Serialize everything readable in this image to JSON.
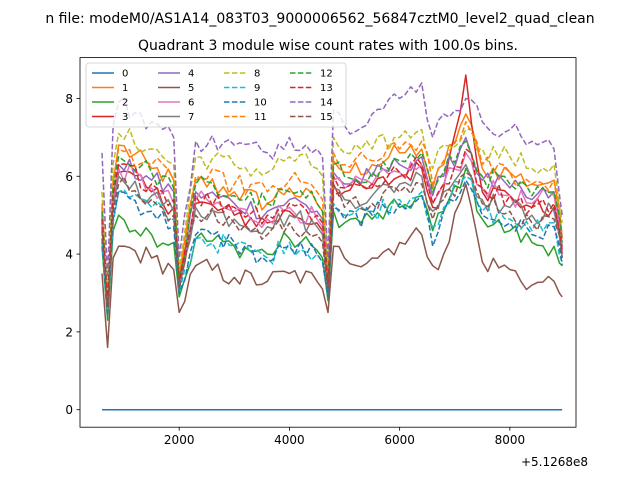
{
  "figure": {
    "suptitle": "n file: modeM0/AS1A14_083T03_9000006562_56847cztM0_level2_quad_clean",
    "title": "Quadrant 3 module wise count rates with 100.0s bins.",
    "offset_label": "+5.1268e8"
  },
  "chart_data": {
    "type": "line",
    "title": "Quadrant 3 module wise count rates with 100.0s bins.",
    "xlabel": "",
    "ylabel": "",
    "x_offset": 512680000,
    "xlim": [
      200,
      9200
    ],
    "ylim": [
      -0.45,
      9.05
    ],
    "xticks": [
      2000,
      4000,
      6000,
      8000
    ],
    "xtick_labels": [
      "2000",
      "4000",
      "6000",
      "8000"
    ],
    "yticks": [
      0,
      2,
      4,
      6,
      8
    ],
    "ytick_labels": [
      "0",
      "2",
      "4",
      "6",
      "8"
    ],
    "grid": false,
    "legend": {
      "placement": "top-left",
      "columns": 4
    },
    "x_knots": [
      600,
      700,
      800,
      900,
      1500,
      1900,
      2000,
      2300,
      3000,
      3600,
      4000,
      4500,
      4600,
      4700,
      4800,
      5000,
      5500,
      6000,
      6400,
      6600,
      6800,
      7200,
      7500,
      8000,
      8400,
      8800,
      8950
    ],
    "series": [
      {
        "name": "0",
        "color": "#1f77b4",
        "dash": false,
        "y_knots": [
          0,
          0,
          0,
          0,
          0,
          0,
          0,
          0,
          0,
          0,
          0,
          0,
          0,
          0,
          0,
          0,
          0,
          0,
          0,
          0,
          0,
          0,
          0,
          0,
          0,
          0,
          0
        ]
      },
      {
        "name": "1",
        "color": "#ff7f0e",
        "dash": false,
        "y_knots": [
          5.2,
          2.8,
          5.8,
          6.8,
          6.2,
          5.9,
          3.4,
          5.9,
          5.6,
          5.3,
          5.7,
          5.3,
          5.1,
          3.3,
          6.4,
          6.1,
          6.3,
          6.6,
          6.7,
          5.7,
          6.3,
          7.6,
          6.2,
          6.1,
          5.8,
          5.9,
          4.4
        ]
      },
      {
        "name": "2",
        "color": "#2ca02c",
        "dash": false,
        "y_knots": [
          4.2,
          2.3,
          4.6,
          5.0,
          4.5,
          4.3,
          2.9,
          4.4,
          4.2,
          4.0,
          4.4,
          4.1,
          3.9,
          2.8,
          5.1,
          4.8,
          4.9,
          5.2,
          5.5,
          4.6,
          5.1,
          6.2,
          4.9,
          4.6,
          4.3,
          4.2,
          3.7
        ]
      },
      {
        "name": "3",
        "color": "#d62728",
        "dash": false,
        "y_knots": [
          4.8,
          2.6,
          5.3,
          6.1,
          5.6,
          5.2,
          3.2,
          5.3,
          5.0,
          4.8,
          5.1,
          4.8,
          4.6,
          3.1,
          5.8,
          5.6,
          5.7,
          6.0,
          6.2,
          5.2,
          5.7,
          8.6,
          5.6,
          5.5,
          5.2,
          5.2,
          4.0
        ]
      },
      {
        "name": "4",
        "color": "#9467bd",
        "dash": false,
        "y_knots": [
          5.0,
          2.7,
          5.5,
          6.3,
          5.9,
          5.6,
          3.3,
          5.6,
          5.3,
          5.1,
          5.4,
          5.1,
          4.9,
          3.2,
          6.1,
          5.8,
          6.0,
          6.3,
          6.5,
          5.5,
          6.0,
          7.0,
          5.9,
          5.7,
          5.4,
          5.6,
          4.2
        ]
      },
      {
        "name": "5",
        "color": "#8c564b",
        "dash": false,
        "y_knots": [
          3.5,
          1.6,
          3.9,
          4.2,
          3.9,
          3.6,
          2.5,
          3.7,
          3.4,
          3.3,
          3.5,
          3.3,
          3.1,
          2.5,
          4.2,
          3.9,
          3.9,
          4.3,
          4.5,
          3.7,
          4.0,
          5.8,
          3.8,
          3.6,
          3.2,
          3.3,
          2.9
        ]
      },
      {
        "name": "6",
        "color": "#e377c2",
        "dash": false,
        "y_knots": [
          4.9,
          2.6,
          5.4,
          6.2,
          5.7,
          5.3,
          3.2,
          5.4,
          5.1,
          4.9,
          5.2,
          4.9,
          4.7,
          3.1,
          5.9,
          5.7,
          5.8,
          6.1,
          6.3,
          5.3,
          5.8,
          6.6,
          5.7,
          5.5,
          5.3,
          5.5,
          4.1
        ]
      },
      {
        "name": "7",
        "color": "#7f7f7f",
        "dash": false,
        "y_knots": [
          4.7,
          2.5,
          5.2,
          6.0,
          5.5,
          5.1,
          3.1,
          5.2,
          4.9,
          4.7,
          5.0,
          4.7,
          4.5,
          3.0,
          5.7,
          5.4,
          5.5,
          5.8,
          6.0,
          5.1,
          5.6,
          6.3,
          5.4,
          5.2,
          5.0,
          5.1,
          3.9
        ]
      },
      {
        "name": "8",
        "color": "#bcbd22",
        "dash": true,
        "y_knots": [
          5.6,
          3.0,
          6.3,
          7.1,
          6.7,
          6.3,
          3.6,
          6.5,
          6.3,
          6.1,
          6.5,
          6.2,
          6.0,
          3.6,
          7.0,
          6.6,
          6.7,
          7.0,
          7.2,
          6.2,
          6.8,
          7.2,
          6.7,
          6.5,
          6.2,
          6.3,
          4.8
        ]
      },
      {
        "name": "9",
        "color": "#17becf",
        "dash": true,
        "y_knots": [
          4.3,
          2.5,
          4.8,
          5.6,
          5.2,
          4.9,
          3.0,
          4.4,
          4.2,
          3.9,
          4.3,
          4.0,
          3.8,
          2.9,
          5.3,
          5.0,
          5.1,
          5.4,
          5.6,
          4.7,
          5.2,
          6.0,
          5.1,
          4.9,
          4.6,
          4.8,
          3.8
        ]
      },
      {
        "name": "10",
        "color": "#1f77b4",
        "dash": true,
        "y_knots": [
          4.4,
          2.4,
          4.9,
          5.6,
          5.1,
          4.7,
          3.0,
          4.5,
          4.3,
          3.8,
          4.2,
          4.0,
          3.8,
          2.9,
          5.2,
          4.9,
          5.0,
          5.3,
          5.5,
          4.2,
          5.1,
          5.9,
          5.0,
          4.8,
          4.5,
          4.7,
          3.7
        ]
      },
      {
        "name": "11",
        "color": "#ff7f0e",
        "dash": true,
        "y_knots": [
          5.3,
          2.9,
          5.9,
          6.7,
          6.3,
          5.9,
          3.5,
          6.0,
          5.8,
          5.6,
          5.9,
          5.6,
          5.4,
          3.4,
          6.6,
          6.3,
          6.4,
          6.7,
          6.9,
          5.8,
          6.4,
          7.4,
          6.3,
          6.1,
          5.8,
          5.9,
          4.5
        ]
      },
      {
        "name": "12",
        "color": "#2ca02c",
        "dash": true,
        "y_knots": [
          5.1,
          2.8,
          5.7,
          6.5,
          6.1,
          5.7,
          3.4,
          5.8,
          5.5,
          5.3,
          5.6,
          5.3,
          5.1,
          3.3,
          6.3,
          6.0,
          6.1,
          6.4,
          6.6,
          5.6,
          6.1,
          6.9,
          6.0,
          5.8,
          5.5,
          5.6,
          4.3
        ]
      },
      {
        "name": "13",
        "color": "#d62728",
        "dash": true,
        "y_knots": [
          4.9,
          2.7,
          5.5,
          6.3,
          5.8,
          5.4,
          3.3,
          5.5,
          5.2,
          5.0,
          5.3,
          5.0,
          4.8,
          3.2,
          6.0,
          5.7,
          5.8,
          6.1,
          6.3,
          5.3,
          5.8,
          6.7,
          5.7,
          5.5,
          5.2,
          5.3,
          4.1
        ]
      },
      {
        "name": "14",
        "color": "#9467bd",
        "dash": true,
        "y_knots": [
          6.6,
          3.4,
          7.3,
          7.9,
          7.4,
          7.0,
          3.9,
          6.9,
          6.8,
          6.6,
          7.0,
          6.7,
          6.5,
          3.9,
          7.7,
          7.3,
          7.6,
          8.0,
          8.4,
          7.0,
          7.6,
          8.0,
          7.4,
          7.2,
          6.9,
          6.7,
          5.0
        ]
      },
      {
        "name": "15",
        "color": "#8c564b",
        "dash": true,
        "y_knots": [
          4.6,
          2.5,
          5.1,
          5.8,
          5.4,
          5.0,
          3.1,
          5.0,
          4.8,
          4.5,
          4.8,
          4.5,
          4.3,
          3.0,
          5.5,
          5.2,
          5.3,
          5.6,
          5.8,
          4.9,
          5.4,
          6.1,
          5.3,
          5.1,
          4.8,
          4.9,
          3.9
        ]
      }
    ]
  }
}
